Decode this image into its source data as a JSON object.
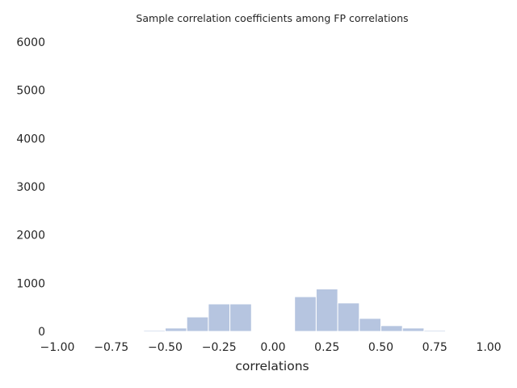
{
  "chart_data": {
    "type": "bar",
    "title": "Sample correlation coefficients among FP correlations",
    "xlabel": "correlations",
    "ylabel": "",
    "xlim": [
      -1.0,
      1.0
    ],
    "ylim": [
      0,
      6000
    ],
    "xticks": [
      "−1.00",
      "−0.75",
      "−0.50",
      "−0.25",
      "0.00",
      "0.25",
      "0.50",
      "0.75",
      "1.00"
    ],
    "xtick_values": [
      -1.0,
      -0.75,
      -0.5,
      -0.25,
      0.0,
      0.25,
      0.5,
      0.75,
      1.0
    ],
    "yticks": [
      "0",
      "1000",
      "2000",
      "3000",
      "4000",
      "5000",
      "6000"
    ],
    "ytick_values": [
      0,
      1000,
      2000,
      3000,
      4000,
      5000,
      6000
    ],
    "bins": [
      {
        "x0": -0.6,
        "x1": -0.5,
        "count": 25
      },
      {
        "x0": -0.5,
        "x1": -0.4,
        "count": 70
      },
      {
        "x0": -0.4,
        "x1": -0.3,
        "count": 300
      },
      {
        "x0": -0.3,
        "x1": -0.2,
        "count": 570
      },
      {
        "x0": -0.2,
        "x1": -0.1,
        "count": 570
      },
      {
        "x0": 0.1,
        "x1": 0.2,
        "count": 720
      },
      {
        "x0": 0.2,
        "x1": 0.3,
        "count": 880
      },
      {
        "x0": 0.3,
        "x1": 0.4,
        "count": 590
      },
      {
        "x0": 0.4,
        "x1": 0.5,
        "count": 270
      },
      {
        "x0": 0.5,
        "x1": 0.6,
        "count": 120
      },
      {
        "x0": 0.6,
        "x1": 0.7,
        "count": 70
      },
      {
        "x0": 0.7,
        "x1": 0.8,
        "count": 25
      },
      {
        "x0": 0.8,
        "x1": 0.9,
        "count": 15
      }
    ],
    "bar_color": "#b6c5e0",
    "bar_edge_color": "#ffffff",
    "grid": false,
    "legend": "none"
  }
}
